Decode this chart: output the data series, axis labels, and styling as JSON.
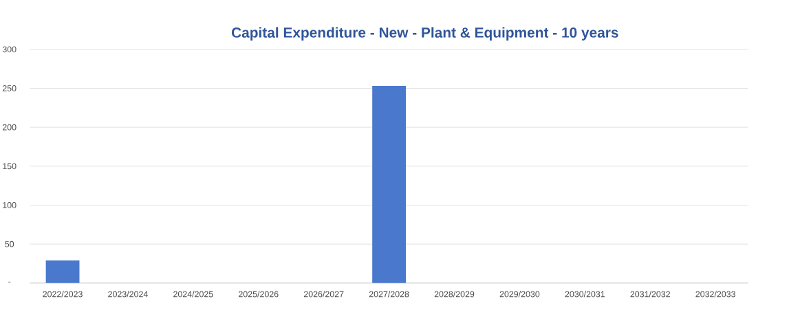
{
  "chart_data": {
    "type": "bar",
    "title": "Capital Expenditure - New - Plant & Equipment - 10 years",
    "categories": [
      "2022/2023",
      "2023/2024",
      "2024/2025",
      "2025/2026",
      "2026/2027",
      "2027/2028",
      "2028/2029",
      "2029/2030",
      "2030/2031",
      "2031/2032",
      "2032/2033"
    ],
    "values": [
      29,
      0,
      0,
      0,
      0,
      253,
      0,
      0,
      0,
      0,
      0
    ],
    "color": "#4a78cc",
    "ylim": [
      0,
      300
    ],
    "yticks": [
      {
        "value": 0,
        "label": "-"
      },
      50,
      100,
      150,
      200,
      250,
      300
    ],
    "grid": "y"
  }
}
